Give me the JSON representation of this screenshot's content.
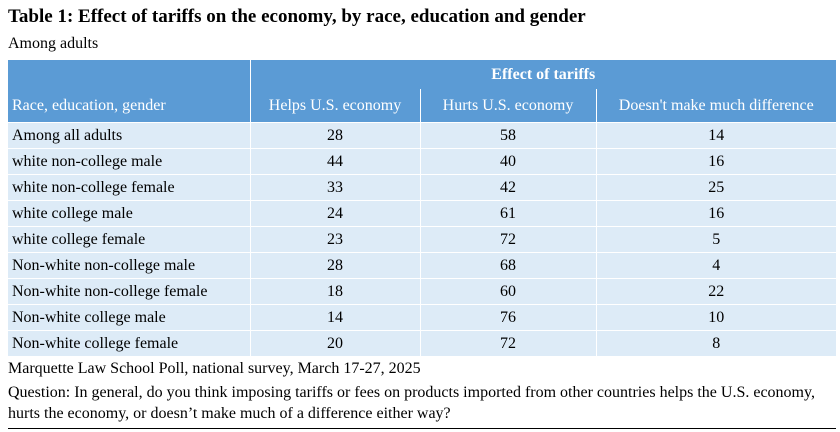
{
  "title": "Table 1: Effect of tariffs on the economy, by race, education and gender",
  "subtitle": "Among adults",
  "table": {
    "group_header": "Effect of tariffs",
    "columns": [
      "Race, education, gender",
      "Helps U.S. economy",
      "Hurts U.S. economy",
      "Doesn't make much difference"
    ],
    "rows": [
      {
        "label": "Among all adults",
        "helps": "28",
        "hurts": "58",
        "no_difference": "14"
      },
      {
        "label": "white non-college male",
        "helps": "44",
        "hurts": "40",
        "no_difference": "16"
      },
      {
        "label": "white non-college female",
        "helps": "33",
        "hurts": "42",
        "no_difference": "25"
      },
      {
        "label": "white college male",
        "helps": "24",
        "hurts": "61",
        "no_difference": "16"
      },
      {
        "label": "white college female",
        "helps": "23",
        "hurts": "72",
        "no_difference": "5"
      },
      {
        "label": "Non-white non-college male",
        "helps": "28",
        "hurts": "68",
        "no_difference": "4"
      },
      {
        "label": "Non-white non-college female",
        "helps": "18",
        "hurts": "60",
        "no_difference": "22"
      },
      {
        "label": "Non-white college male",
        "helps": "14",
        "hurts": "76",
        "no_difference": "10"
      },
      {
        "label": "Non-white college female",
        "helps": "20",
        "hurts": "72",
        "no_difference": "8"
      }
    ]
  },
  "source": "Marquette Law School Poll, national survey, March 17-27, 2025",
  "question": "Question: In general, do you think imposing tariffs or fees on products imported from other countries helps the U.S. economy, hurts the economy, or doesn’t make much of a difference either way?",
  "colors": {
    "header_bg": "#5b9bd5",
    "row_bg": "#ddebf7"
  }
}
